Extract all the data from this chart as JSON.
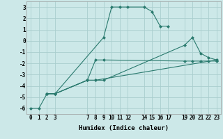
{
  "title": "",
  "xlabel": "Humidex (Indice chaleur)",
  "background_color": "#cce8e8",
  "line_color": "#2a7a6e",
  "grid_color": "#aacece",
  "xlim": [
    -0.5,
    23.5
  ],
  "ylim": [
    -6.5,
    3.5
  ],
  "xticks": [
    0,
    1,
    2,
    3,
    7,
    8,
    9,
    10,
    11,
    12,
    14,
    15,
    16,
    17,
    19,
    20,
    21,
    22,
    23
  ],
  "yticks": [
    -6,
    -5,
    -4,
    -3,
    -2,
    -1,
    0,
    1,
    2,
    3
  ],
  "lines": [
    {
      "x": [
        0,
        1,
        2,
        3,
        9,
        10,
        11,
        12,
        14,
        15,
        16,
        17
      ],
      "y": [
        -6,
        -6,
        -4.7,
        -4.7,
        0.3,
        3.0,
        3.0,
        3.0,
        3.0,
        2.6,
        1.3,
        1.3
      ]
    },
    {
      "x": [
        2,
        3,
        7,
        8,
        9,
        19,
        20,
        21,
        22,
        23
      ],
      "y": [
        -4.7,
        -4.7,
        -3.5,
        -3.5,
        -3.5,
        -0.4,
        0.3,
        -1.1,
        -1.5,
        -1.7
      ]
    },
    {
      "x": [
        2,
        3,
        7,
        8,
        23
      ],
      "y": [
        -4.7,
        -4.7,
        -3.5,
        -3.5,
        -1.7
      ]
    },
    {
      "x": [
        2,
        3,
        7,
        8,
        9,
        19,
        20,
        21,
        22,
        23
      ],
      "y": [
        -4.7,
        -4.7,
        -3.5,
        -1.7,
        -1.7,
        -1.8,
        -1.8,
        -1.8,
        -1.8,
        -1.8
      ]
    }
  ],
  "xlabel_fontsize": 6.5,
  "tick_fontsize": 5.5
}
